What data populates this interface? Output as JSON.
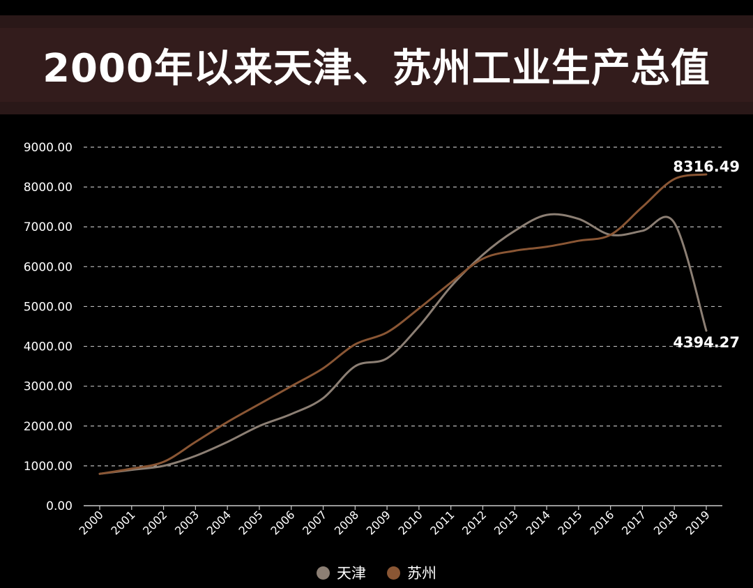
{
  "title": "2000年以来天津、苏州工业生产总值",
  "chart_data": {
    "type": "line",
    "categories": [
      "2000",
      "2001",
      "2002",
      "2003",
      "2004",
      "2005",
      "2006",
      "2007",
      "2008",
      "2009",
      "2010",
      "2011",
      "2012",
      "2013",
      "2014",
      "2015",
      "2016",
      "2017",
      "2018",
      "2019"
    ],
    "ylim": [
      0,
      9000
    ],
    "yticks": [
      "0.00",
      "1000.00",
      "2000.00",
      "3000.00",
      "4000.00",
      "5000.00",
      "6000.00",
      "7000.00",
      "8000.00",
      "9000.00"
    ],
    "grid": true,
    "legend_position": "bottom",
    "series": [
      {
        "name": "天津",
        "color": "#8c7f74",
        "values": [
          800,
          900,
          1000,
          1250,
          1600,
          2000,
          2300,
          2700,
          3500,
          3700,
          4500,
          5500,
          6300,
          6900,
          7300,
          7200,
          6800,
          6900,
          7100,
          4394.27
        ],
        "end_label": "4394.27"
      },
      {
        "name": "苏州",
        "color": "#8a5634",
        "values": [
          800,
          930,
          1100,
          1600,
          2100,
          2550,
          3000,
          3450,
          4050,
          4350,
          4950,
          5600,
          6200,
          6400,
          6500,
          6650,
          6800,
          7500,
          8200,
          8316.49
        ],
        "end_label": "8316.49"
      }
    ]
  }
}
